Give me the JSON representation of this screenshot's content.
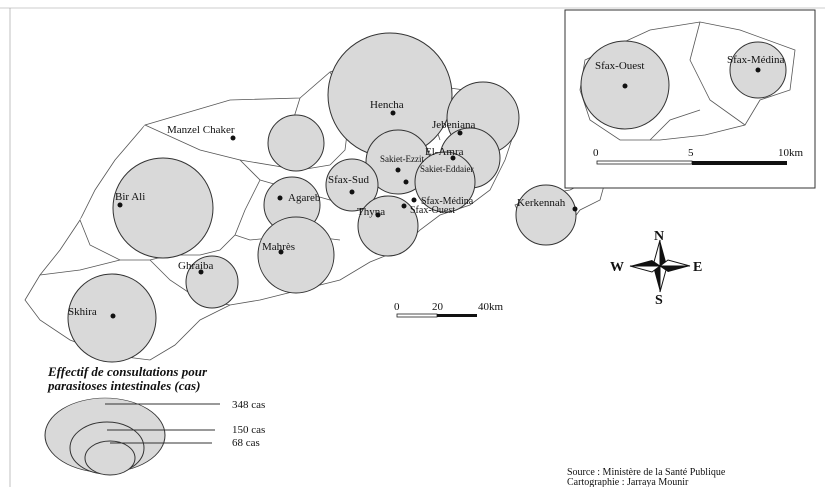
{
  "places": [
    {
      "label": "Hencha"
    },
    {
      "label": "Jebeniana"
    },
    {
      "label": "Manzel Chaker"
    },
    {
      "label": "El-Amra"
    },
    {
      "label": "Sakiet-Ezzit"
    },
    {
      "label": "Sakiet-Eddaier"
    },
    {
      "label": "Sfax-Sud"
    },
    {
      "label": "Agareb"
    },
    {
      "label": "Bir Ali"
    },
    {
      "label": "Thyna"
    },
    {
      "label": "Sfax-Médina"
    },
    {
      "label": "Sfax-Ouest"
    },
    {
      "label": "Kerkennah"
    },
    {
      "label": "Mahrès"
    },
    {
      "label": "Ghraiba"
    },
    {
      "label": "Skhira"
    }
  ],
  "inset": {
    "labels": [
      "Sfax-Ouest",
      "Sfax-Médina"
    ],
    "scale": [
      "0",
      "5",
      "10km"
    ]
  },
  "scale": [
    "0",
    "20",
    "40km"
  ],
  "compass": {
    "n": "N",
    "s": "S",
    "e": "E",
    "w": "W"
  },
  "legend": {
    "title": [
      "Effectif de consultations pour",
      "parasitoses intestinales (cas)"
    ],
    "labels": [
      "348 cas",
      "150 cas",
      "68 cas"
    ]
  },
  "source": [
    "Source : Ministère de la Santé Publique",
    "Cartographie : Jarraya Mounir"
  ]
}
